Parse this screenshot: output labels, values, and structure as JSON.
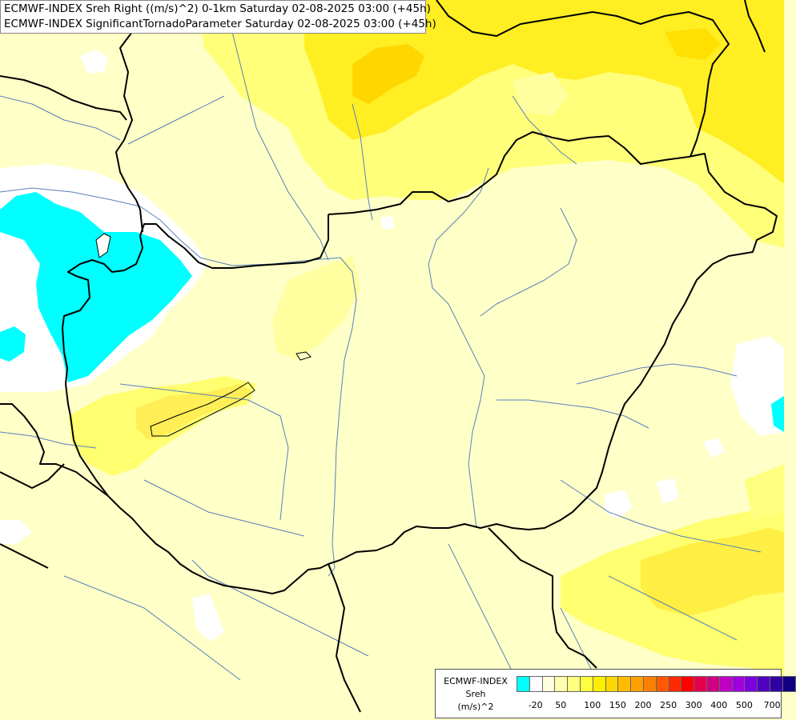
{
  "header": {
    "title_line1": "ECMWF-INDEX Sreh Right ((m/s)^2) 0-1km Saturday 02-08-2025 03:00 (+45h)",
    "title_line2": "ECMWF-INDEX SignificantTornadoParameter Saturday 02-08-2025 03:00 (+45h)"
  },
  "legend": {
    "source": "ECMWF-INDEX",
    "parameter": "Sreh",
    "unit": "(m/s)^2",
    "colors": [
      "#00ffff",
      "#ffffff",
      "#ffffe0",
      "#ffffb0",
      "#ffff80",
      "#ffff40",
      "#ffee00",
      "#ffd700",
      "#ffbb00",
      "#ffa000",
      "#ff8000",
      "#ff5a00",
      "#ff2a00",
      "#ff0000",
      "#e6004c",
      "#d00080",
      "#c000c0",
      "#a000e0",
      "#7a00e0",
      "#5000c0",
      "#3000a0",
      "#100080"
    ],
    "ticks": [
      "-20",
      "50",
      "100",
      "150",
      "200",
      "250",
      "300",
      "400",
      "500",
      "700"
    ]
  },
  "colors": {
    "light_yellow": "#ffffc8",
    "pale_yellow": "#ffffa0",
    "yellow": "#ffff55",
    "bright_yellow": "#ffee22",
    "orange_yellow": "#ffd700",
    "cyan": "#00ffff",
    "white": "#ffffff",
    "border": "#000000",
    "river": "#5a7fb8"
  }
}
